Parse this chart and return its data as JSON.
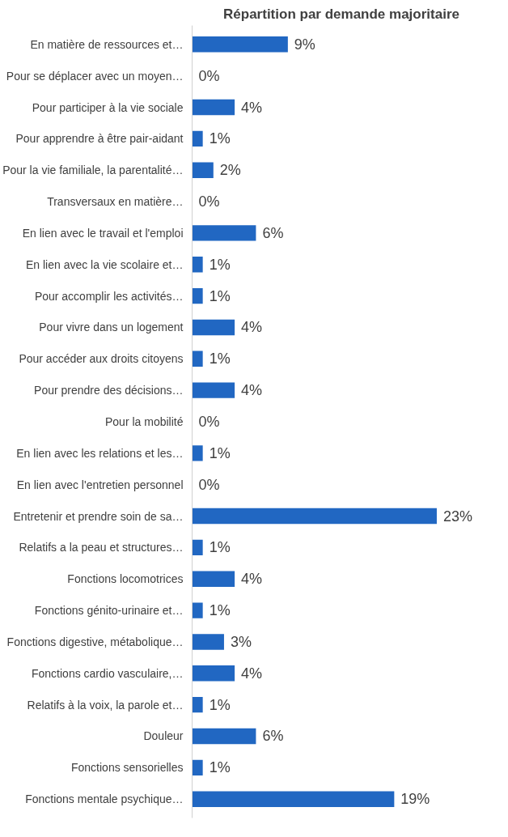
{
  "chart_data": {
    "type": "bar",
    "orientation": "horizontal",
    "title": "Répartition par demande majoritaire",
    "categories": [
      "En matière de ressources et…",
      "Pour se déplacer avec un moyen…",
      "Pour participer à la vie sociale",
      "Pour apprendre à être pair-aidant",
      "Pour la vie familiale, la parentalité…",
      "Transversaux en matière…",
      "En lien avec le travail et l'emploi",
      "En lien avec la vie scolaire et…",
      "Pour accomplir les activités…",
      "Pour vivre dans un logement",
      "Pour accéder aux droits citoyens",
      "Pour prendre des décisions…",
      "Pour la mobilité",
      "En lien avec les relations et les…",
      "En lien avec l'entretien personnel",
      "Entretenir et prendre soin de sa…",
      "Relatifs a la peau et structures…",
      "Fonctions locomotrices",
      "Fonctions génito-urinaire et…",
      "Fonctions digestive, métabolique…",
      "Fonctions cardio vasculaire,…",
      "Relatifs à la voix, la parole et…",
      "Douleur",
      "Fonctions sensorielles",
      "Fonctions mentale psychique…"
    ],
    "values": [
      9,
      0,
      4,
      1,
      2,
      0,
      6,
      1,
      1,
      4,
      1,
      4,
      0,
      1,
      0,
      23,
      1,
      4,
      1,
      3,
      4,
      1,
      6,
      1,
      19
    ],
    "value_labels": [
      "9%",
      "0%",
      "4%",
      "1%",
      "2%",
      "0%",
      "6%",
      "1%",
      "1%",
      "4%",
      "1%",
      "4%",
      "0%",
      "1%",
      "0%",
      "23%",
      "1%",
      "4%",
      "1%",
      "3%",
      "4%",
      "1%",
      "6%",
      "1%",
      "19%"
    ],
    "color": "#2167c2",
    "grid": false,
    "tick_labels": "y"
  }
}
